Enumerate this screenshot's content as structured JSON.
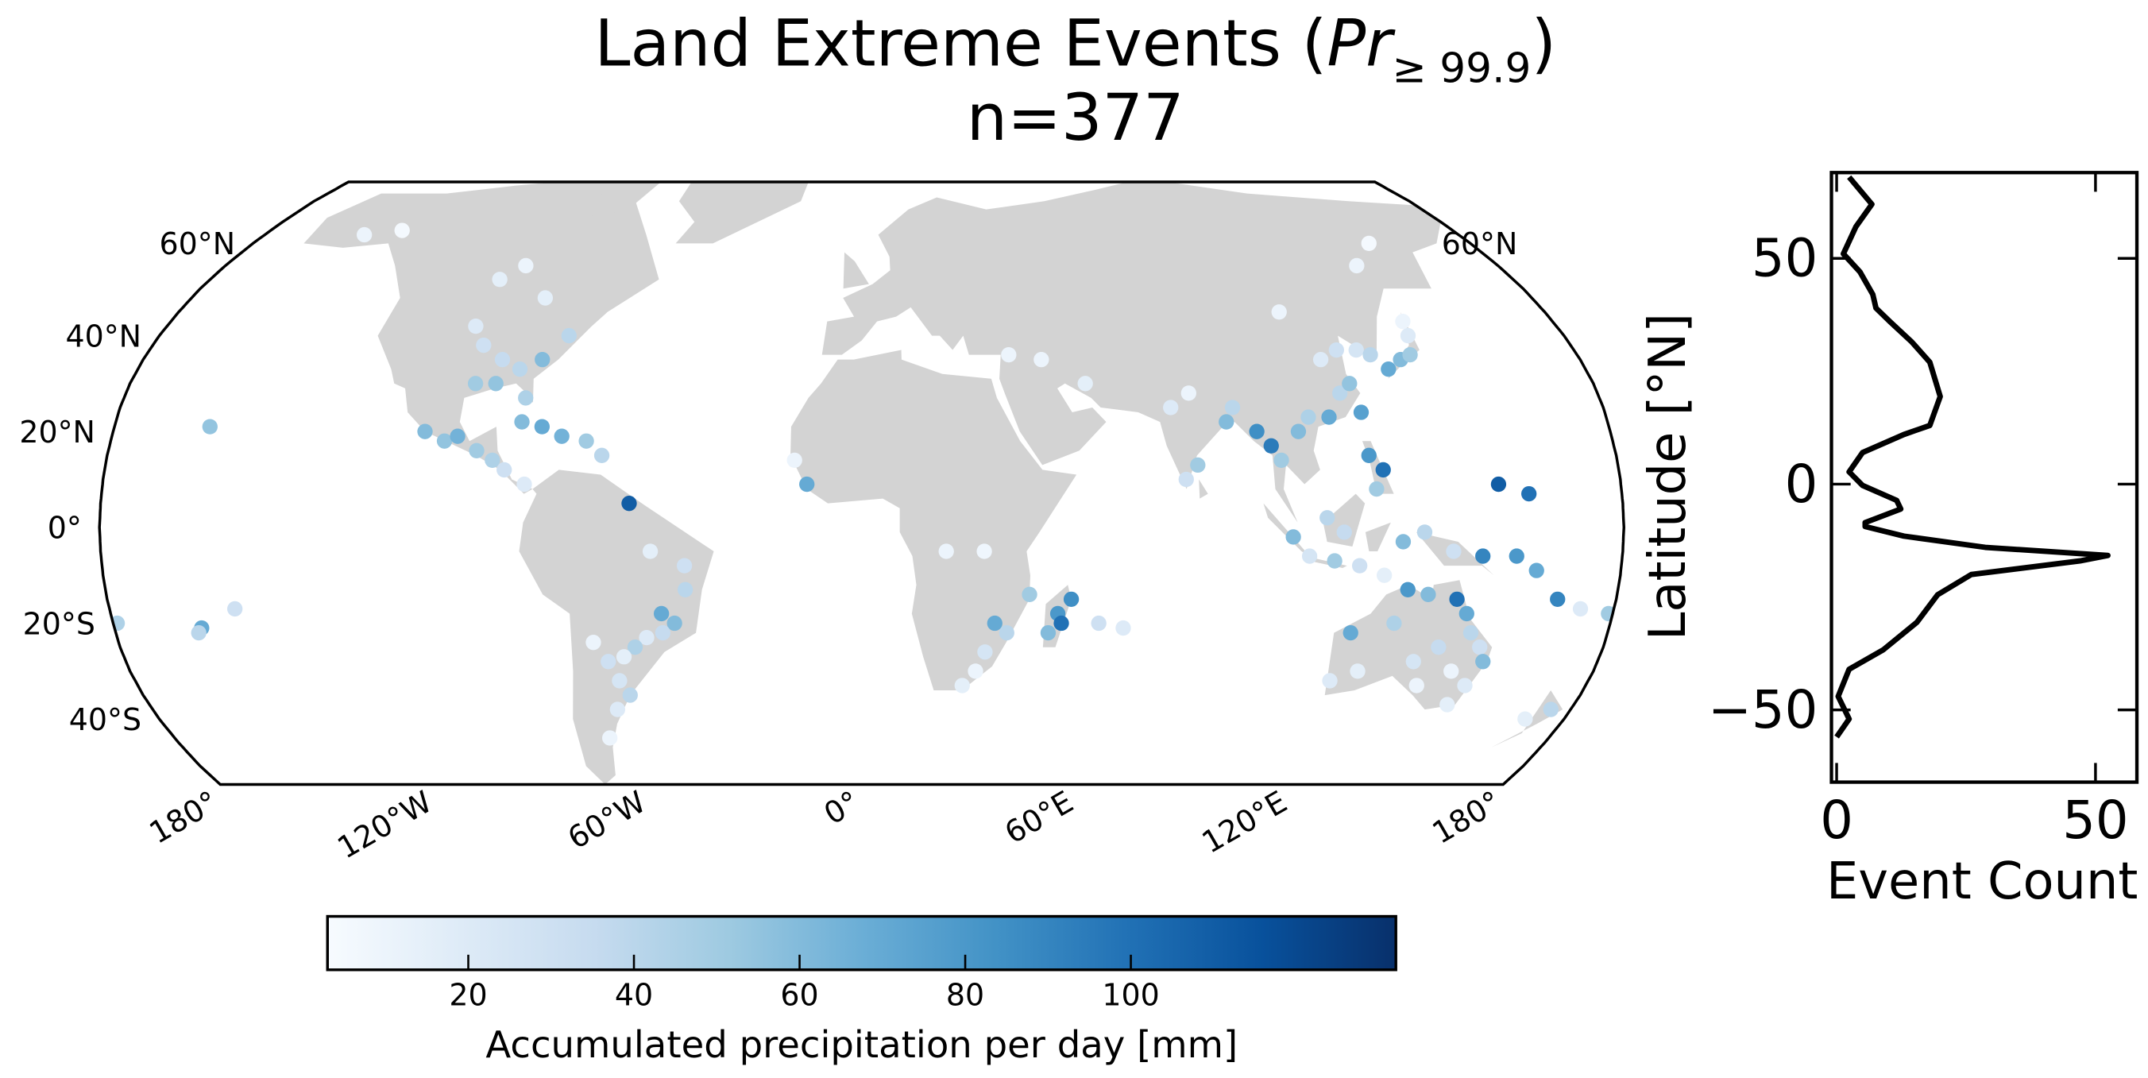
{
  "chart_data": [
    {
      "type": "scatter",
      "title": [
        "Land Extreme Events (",
        "Pr",
        "≥ 99.9",
        ")"
      ],
      "subtitle": "n=377",
      "xlim": [
        -180,
        180
      ],
      "ylim": [
        -54,
        75
      ],
      "xticks": [
        {
          "value": -180,
          "label": "180°"
        },
        {
          "value": -120,
          "label": "120°W"
        },
        {
          "value": -60,
          "label": "60°W"
        },
        {
          "value": 0,
          "label": "0°"
        },
        {
          "value": 60,
          "label": "60°E"
        },
        {
          "value": 120,
          "label": "120°E"
        },
        {
          "value": 180,
          "label": "180°"
        }
      ],
      "yticks": [
        {
          "value": 60,
          "label": "60°N"
        },
        {
          "value": 40,
          "label": "40°N"
        },
        {
          "value": 20,
          "label": "20°N"
        },
        {
          "value": 0,
          "label": "0°"
        },
        {
          "value": -20,
          "label": "20°S"
        },
        {
          "value": -40,
          "label": "40°S"
        }
      ],
      "yticks_right": [
        {
          "value": 60,
          "label": "60°N"
        }
      ],
      "grid": false,
      "land_color": "#d3d3d3",
      "colorbar": {
        "label": "Accumulated precipitation per day [mm]",
        "colormap": "Blues",
        "lim": [
          3,
          132
        ],
        "ticks": [
          20,
          40,
          60,
          80,
          100
        ]
      },
      "x": [
        -100,
        -96,
        -90,
        -85,
        -80,
        -75,
        -95,
        -82,
        -90,
        -150,
        -140,
        -100,
        -95,
        -85,
        -105,
        -100,
        -97,
        -92,
        -88,
        -85,
        -80,
        -82,
        -77,
        -72,
        -66,
        -62,
        -157,
        -55,
        -50,
        -42,
        -45,
        -48,
        -52,
        -55,
        -58,
        -62,
        -65,
        -60,
        -58,
        -62,
        -66,
        -48,
        -42,
        -16,
        -13,
        20,
        29,
        32,
        35,
        30,
        28,
        25,
        40,
        47,
        48,
        45,
        50,
        57,
        63,
        75,
        80,
        88,
        90,
        80,
        77,
        95,
        98,
        100,
        105,
        108,
        113,
        117,
        120,
        115,
        120,
        125,
        128,
        131,
        135,
        138,
        140,
        141,
        121,
        110,
        140,
        150,
        45,
        55,
        37,
        121,
        124,
        122,
        110,
        114,
        102,
        106,
        112,
        118,
        124,
        128,
        133,
        140,
        147,
        155,
        160,
        166,
        172,
        179,
        -179,
        -159,
        -160,
        -150,
        151,
        158,
        118,
        116,
        122,
        130,
        135,
        142,
        145,
        147,
        150,
        152,
        150,
        145,
        140,
        135,
        138,
        148,
        128,
        170,
        175
      ],
      "y": [
        42,
        38,
        35,
        33,
        35,
        40,
        30,
        27,
        30,
        62,
        63,
        52,
        55,
        48,
        20,
        18,
        19,
        16,
        14,
        12,
        9,
        22,
        21,
        19,
        18,
        15,
        21,
        5,
        -5,
        -13,
        -20,
        -22,
        -23,
        -25,
        -27,
        -28,
        -24,
        -32,
        -35,
        -38,
        -44,
        -18,
        -8,
        14,
        9,
        -5,
        -5,
        -20,
        -22,
        -26,
        -30,
        -33,
        -14,
        -18,
        -20,
        -22,
        -15,
        -20,
        -21,
        25,
        28,
        22,
        25,
        13,
        10,
        20,
        17,
        14,
        20,
        23,
        23,
        28,
        30,
        35,
        37,
        37,
        36,
        33,
        35,
        36,
        40,
        43,
        24,
        45,
        55,
        60,
        35,
        30,
        36,
        15,
        12,
        8,
        2,
        -1,
        -2,
        -6,
        -7,
        -8,
        -10,
        -3,
        -1,
        -5,
        -6,
        -6,
        -9,
        -15,
        -17,
        -18,
        -20,
        -21,
        -22,
        -17,
        9,
        7,
        -22,
        -32,
        -30,
        -13,
        -14,
        -15,
        -18,
        -22,
        -25,
        -28,
        -33,
        -30,
        -25,
        -28,
        -33,
        -37,
        -20,
        -40,
        -38
      ],
      "values": [
        20,
        30,
        35,
        40,
        60,
        40,
        50,
        45,
        55,
        10,
        5,
        15,
        10,
        15,
        60,
        55,
        65,
        50,
        45,
        30,
        20,
        60,
        70,
        65,
        50,
        40,
        55,
        110,
        15,
        40,
        60,
        35,
        20,
        45,
        15,
        30,
        10,
        25,
        40,
        20,
        10,
        70,
        30,
        10,
        70,
        10,
        8,
        70,
        40,
        25,
        10,
        15,
        50,
        80,
        100,
        60,
        85,
        30,
        20,
        20,
        10,
        60,
        40,
        50,
        30,
        85,
        95,
        50,
        60,
        45,
        70,
        40,
        55,
        20,
        30,
        25,
        40,
        70,
        60,
        50,
        20,
        10,
        75,
        10,
        10,
        5,
        10,
        15,
        10,
        80,
        100,
        50,
        40,
        35,
        60,
        25,
        50,
        30,
        15,
        60,
        40,
        30,
        90,
        80,
        70,
        90,
        20,
        50,
        45,
        70,
        40,
        30,
        110,
        100,
        70,
        20,
        15,
        80,
        60,
        100,
        70,
        40,
        30,
        60,
        20,
        10,
        35,
        25,
        10,
        15,
        45,
        15,
        40
      ]
    },
    {
      "type": "line",
      "xlabel": "Event Count",
      "ylabel": "Latitude [°N]",
      "xlim": [
        -1,
        58
      ],
      "ylim": [
        -66,
        69
      ],
      "xticks": [
        0,
        50
      ],
      "yticks": [
        50,
        0,
        {
          "value": -50,
          "label": "−50"
        }
      ],
      "y": [
        68,
        62,
        57,
        51,
        47,
        42,
        39,
        36,
        31.5,
        27,
        19.4,
        13,
        11,
        7,
        2.7,
        -0.3,
        -3.6,
        -5.5,
        -8.5,
        -9.4,
        -11.5,
        -14,
        -15.8,
        -17,
        -20,
        -24.5,
        -30.6,
        -36.7,
        -41,
        -47,
        -52,
        -56
      ],
      "series": [
        {
          "color": "#000000",
          "values": [
            2.4,
            6.8,
            3.7,
            1.3,
            4.5,
            7,
            7.6,
            10.3,
            14.5,
            18,
            20,
            18,
            13,
            5,
            2.4,
            5,
            11.6,
            12.4,
            5.5,
            5.5,
            13,
            28.7,
            52.4,
            47,
            26,
            19.5,
            15.5,
            9,
            2.4,
            0.3,
            2.4,
            0
          ]
        }
      ]
    }
  ]
}
